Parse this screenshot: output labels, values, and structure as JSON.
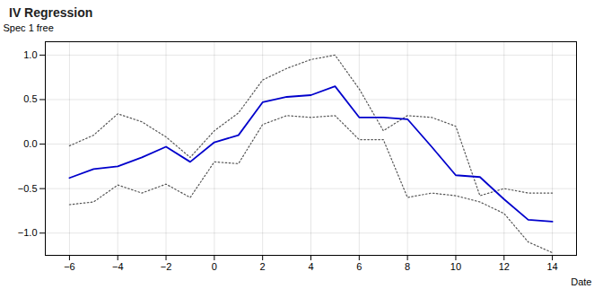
{
  "chart_data": {
    "type": "line",
    "title": "IV Regression",
    "xlabel": "Date",
    "ylabel": "Spec 1 free",
    "x": [
      -6,
      -5,
      -4,
      -3,
      -2,
      -1,
      0,
      1,
      2,
      3,
      4,
      5,
      6,
      7,
      8,
      9,
      10,
      11,
      12,
      13,
      14
    ],
    "series": [
      {
        "color": "#555555",
        "line_style": "dotted",
        "values": [
          -0.02,
          0.1,
          0.34,
          0.25,
          0.08,
          -0.15,
          0.15,
          0.35,
          0.72,
          0.85,
          0.95,
          1.0,
          0.62,
          0.15,
          0.32,
          0.3,
          0.2,
          -0.58,
          -0.5,
          -0.55,
          -0.55
        ]
      },
      {
        "color": "#555555",
        "line_style": "dotted",
        "values": [
          -0.68,
          -0.65,
          -0.46,
          -0.55,
          -0.45,
          -0.6,
          -0.2,
          -0.22,
          0.22,
          0.32,
          0.3,
          0.32,
          0.05,
          0.05,
          -0.6,
          -0.55,
          -0.58,
          -0.65,
          -0.78,
          -1.1,
          -1.22
        ]
      },
      {
        "color": "#0000cc",
        "line_style": "solid",
        "values": [
          -0.38,
          -0.28,
          -0.25,
          -0.15,
          -0.03,
          -0.2,
          0.02,
          0.1,
          0.47,
          0.53,
          0.55,
          0.65,
          0.3,
          0.3,
          0.28,
          -0.03,
          -0.35,
          -0.37,
          -0.62,
          -0.85,
          -0.87
        ]
      }
    ],
    "xlim": [
      -7,
      15
    ],
    "ylim": [
      -1.25,
      1.15
    ],
    "xticks": [
      -6,
      -4,
      -2,
      0,
      2,
      4,
      6,
      8,
      10,
      12,
      14
    ],
    "yticks": [
      {
        "value": -1.0,
        "label": "−1.0"
      },
      {
        "value": -0.5,
        "label": "−0.5"
      },
      {
        "value": 0.0,
        "label": "0.0"
      },
      {
        "value": 0.5,
        "label": "0.5"
      },
      {
        "value": 1.0,
        "label": "1.0"
      }
    ],
    "grid": true
  }
}
